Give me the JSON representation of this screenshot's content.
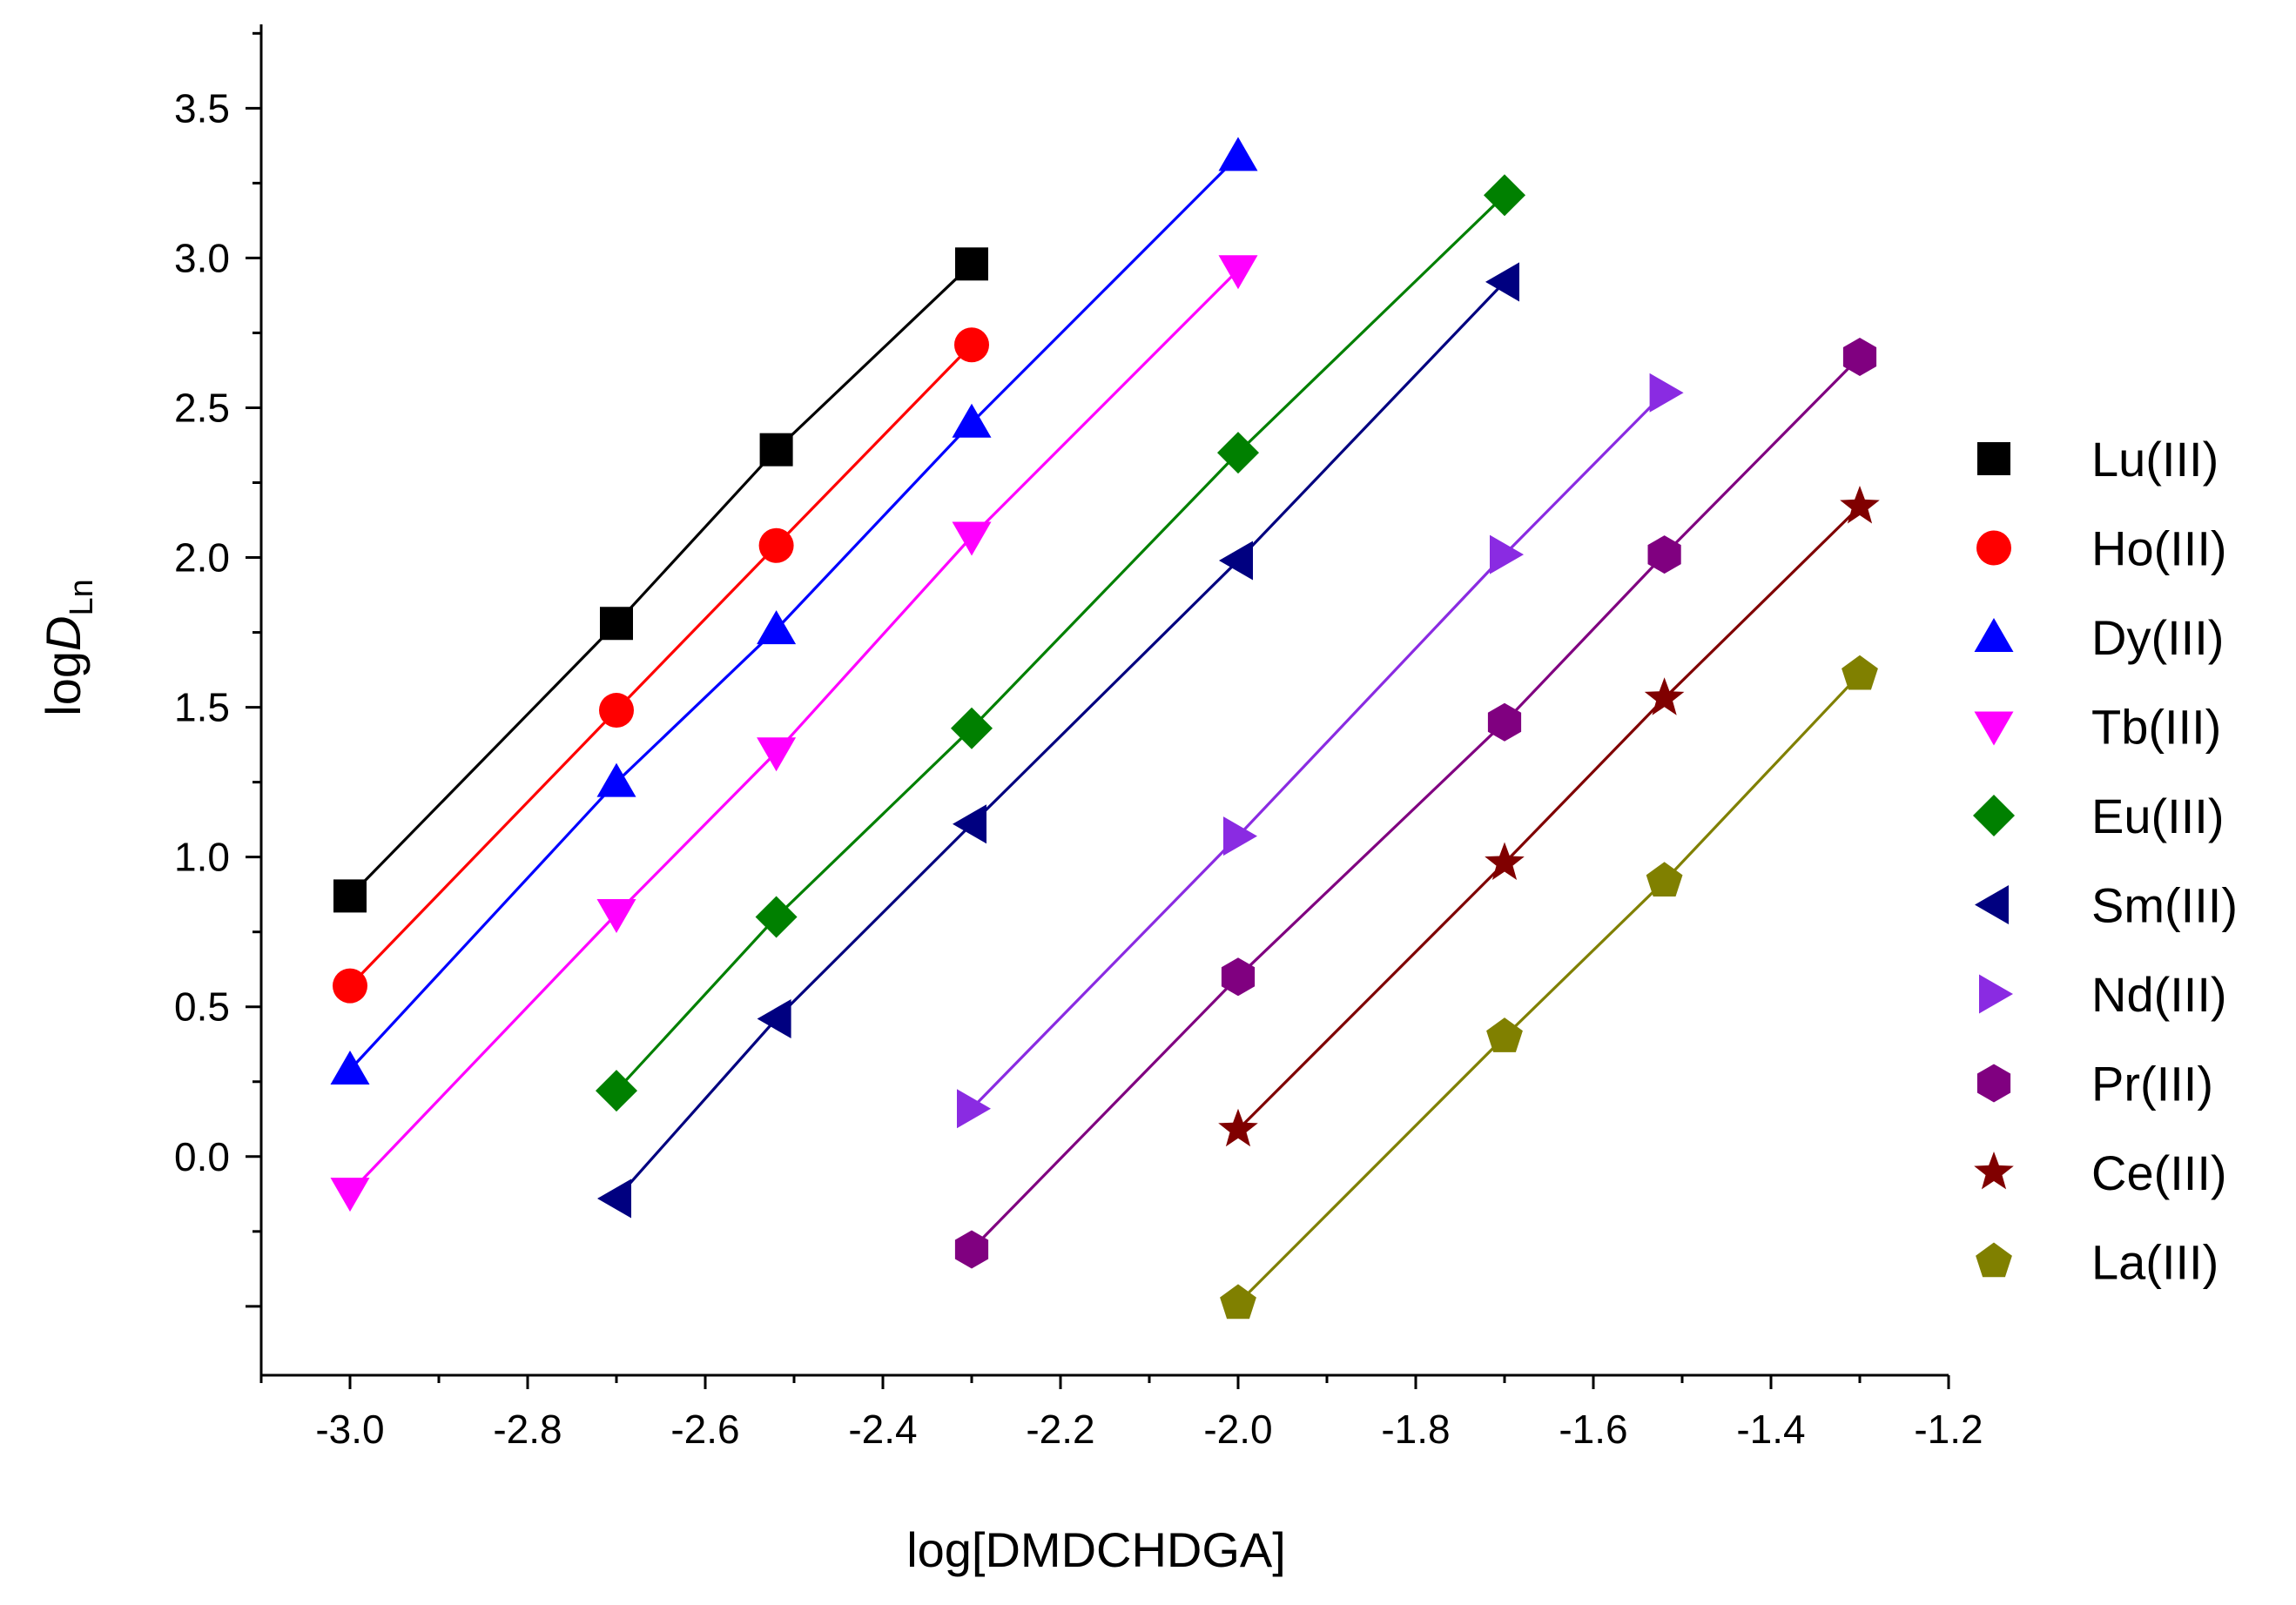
{
  "chart_data": {
    "type": "scatter",
    "title": "",
    "xlabel": "log[DMDCHDGA]",
    "ylabel": {
      "main": "logD",
      "italic": "D",
      "prefix": "log",
      "subscript": "Ln"
    },
    "xlim": [
      -3.1,
      -1.2
    ],
    "ylim": [
      -0.73,
      3.78
    ],
    "x_ticks": [
      -3.0,
      -2.8,
      -2.6,
      -2.4,
      -2.2,
      -2.0,
      -1.8,
      -1.6,
      -1.4,
      -1.2
    ],
    "x_tick_labels": [
      "-3.0",
      "-2.8",
      "-2.6",
      "-2.4",
      "-2.2",
      "-2.0",
      "-1.8",
      "-1.6",
      "-1.4",
      "-1.2"
    ],
    "y_ticks": [
      0.0,
      0.5,
      1.0,
      1.5,
      2.0,
      2.5,
      3.0,
      3.5
    ],
    "y_tick_labels": [
      "0.0",
      "0.5",
      "1.0",
      "1.5",
      "2.0",
      "2.5",
      "3.0",
      "3.5"
    ],
    "fit_lines": true,
    "legend_position": "right",
    "series": [
      {
        "name": "Lu(III)",
        "color": "#000000",
        "marker": "square",
        "x": [
          -3.0,
          -2.7,
          -2.52,
          -2.3
        ],
        "y": [
          0.87,
          1.78,
          2.36,
          2.98
        ]
      },
      {
        "name": "Ho(III)",
        "color": "#ff0000",
        "marker": "circle",
        "x": [
          -3.0,
          -2.7,
          -2.52,
          -2.3
        ],
        "y": [
          0.57,
          1.49,
          2.04,
          2.71
        ]
      },
      {
        "name": "Dy(III)",
        "color": "#0000ff",
        "marker": "triangle-up",
        "x": [
          -3.0,
          -2.7,
          -2.52,
          -2.3,
          -2.0
        ],
        "y": [
          0.29,
          1.25,
          1.76,
          2.45,
          3.34
        ]
      },
      {
        "name": "Tb(III)",
        "color": "#ff00ff",
        "marker": "triangle-down",
        "x": [
          -3.0,
          -2.7,
          -2.52,
          -2.3,
          -2.0
        ],
        "y": [
          -0.12,
          0.81,
          1.35,
          2.07,
          2.96
        ]
      },
      {
        "name": "Eu(III)",
        "color": "#008000",
        "marker": "diamond",
        "x": [
          -2.7,
          -2.52,
          -2.3,
          -2.0,
          -1.7
        ],
        "y": [
          0.22,
          0.8,
          1.43,
          2.35,
          3.21
        ]
      },
      {
        "name": "Sm(III)",
        "color": "#000080",
        "marker": "triangle-left",
        "x": [
          -2.7,
          -2.52,
          -2.3,
          -2.0,
          -1.7
        ],
        "y": [
          -0.14,
          0.46,
          1.11,
          1.99,
          2.92
        ]
      },
      {
        "name": "Nd(III)",
        "color": "#8a2be2",
        "marker": "triangle-right",
        "x": [
          -2.3,
          -2.0,
          -1.7,
          -1.52
        ],
        "y": [
          0.16,
          1.07,
          2.01,
          2.55
        ]
      },
      {
        "name": "Pr(III)",
        "color": "#800080",
        "marker": "hexagon",
        "x": [
          -2.3,
          -2.0,
          -1.7,
          -1.52,
          -1.3
        ],
        "y": [
          -0.31,
          0.6,
          1.45,
          2.01,
          2.67
        ]
      },
      {
        "name": "Ce(III)",
        "color": "#800000",
        "marker": "star",
        "x": [
          -2.0,
          -1.7,
          -1.52,
          -1.3
        ],
        "y": [
          0.09,
          0.98,
          1.53,
          2.17
        ]
      },
      {
        "name": "La(III)",
        "color": "#808000",
        "marker": "pentagon",
        "x": [
          -2.0,
          -1.7,
          -1.52,
          -1.3
        ],
        "y": [
          -0.49,
          0.4,
          0.92,
          1.61
        ]
      }
    ]
  }
}
